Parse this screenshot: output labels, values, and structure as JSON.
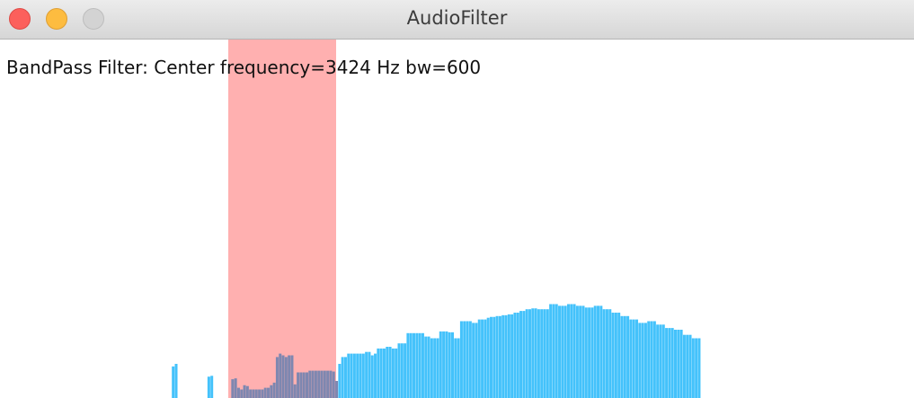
{
  "window": {
    "title": "AudioFilter"
  },
  "filter": {
    "type_label": "BandPass Filter: Center frequency=",
    "center_value": "3424",
    "unit": " Hz bw=",
    "bw_value": "600"
  },
  "colors": {
    "bar": "#44c2fb",
    "band": "#ffb0b0",
    "bar_in_band": "#7e87b0"
  },
  "chart_data": {
    "type": "bar",
    "band_bins": [
      42,
      52
    ],
    "ylim": [
      0,
      200
    ],
    "values": [
      0,
      0,
      0,
      0,
      0,
      0,
      0,
      0,
      0,
      0,
      0,
      0,
      0,
      0,
      0,
      0,
      0,
      0,
      0,
      0,
      0,
      0,
      0,
      0,
      0,
      0,
      0,
      0,
      0,
      0,
      37,
      40,
      0,
      0,
      0,
      0,
      0,
      0,
      0,
      0,
      0,
      0,
      25,
      26,
      0,
      0,
      0,
      0,
      0,
      0,
      22,
      23,
      12,
      10,
      15,
      14,
      10,
      10,
      10,
      10,
      10,
      12,
      12,
      15,
      18,
      48,
      52,
      50,
      48,
      50,
      50,
      16,
      30,
      30,
      30,
      30,
      32,
      32,
      32,
      32,
      32,
      32,
      32,
      32,
      31,
      20,
      40,
      48,
      48,
      52,
      52,
      52,
      52,
      52,
      52,
      54,
      54,
      50,
      52,
      58,
      58,
      58,
      60,
      60,
      58,
      58,
      64,
      64,
      64,
      76,
      76,
      76,
      76,
      76,
      76,
      72,
      72,
      70,
      70,
      70,
      78,
      78,
      78,
      77,
      77,
      70,
      70,
      90,
      90,
      90,
      90,
      88,
      88,
      92,
      92,
      92,
      94,
      95,
      95,
      96,
      96,
      97,
      97,
      98,
      98,
      100,
      100,
      102,
      102,
      104,
      104,
      105,
      105,
      104,
      104,
      104,
      104,
      110,
      110,
      110,
      108,
      108,
      108,
      110,
      110,
      110,
      108,
      108,
      108,
      106,
      106,
      106,
      108,
      108,
      108,
      104,
      104,
      104,
      100,
      100,
      100,
      96,
      96,
      96,
      92,
      92,
      92,
      88,
      88,
      88,
      90,
      90,
      90,
      86,
      86,
      86,
      82,
      82,
      82,
      80,
      80,
      80,
      74,
      74,
      74,
      70,
      70,
      70
    ]
  }
}
